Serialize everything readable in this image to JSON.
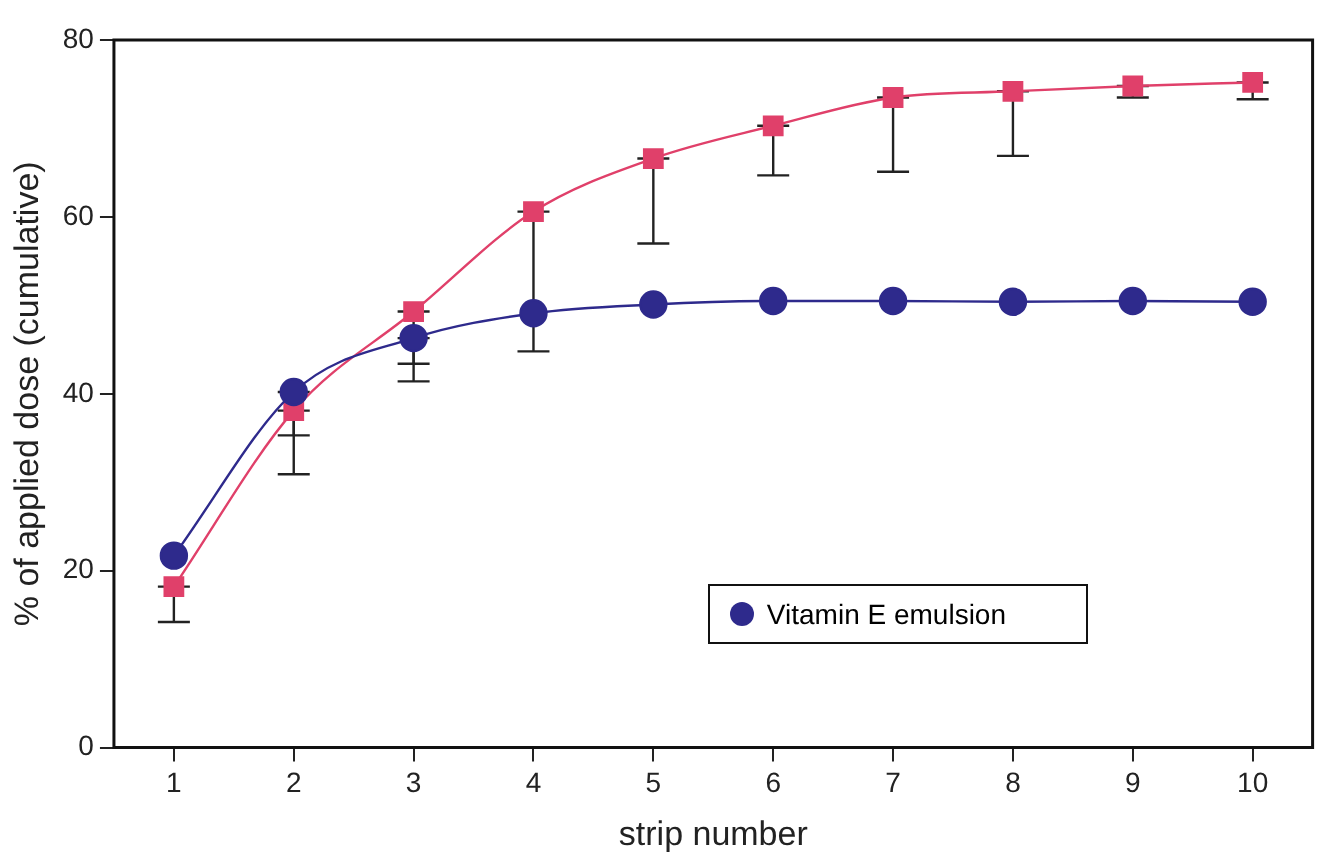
{
  "chart_data": {
    "type": "line",
    "xlabel": "strip number",
    "ylabel": "% of applied dose (cumulative)",
    "x": [
      1,
      2,
      3,
      4,
      5,
      6,
      7,
      8,
      9,
      10
    ],
    "xlim": [
      0.5,
      10.5
    ],
    "xticks": [
      1,
      2,
      3,
      4,
      5,
      6,
      7,
      8,
      9,
      10
    ],
    "ylim": [
      0,
      80
    ],
    "yticks": [
      0,
      20,
      40,
      60,
      80
    ],
    "grid": false,
    "legend": "bottom right",
    "series": [
      {
        "name": "Vitamin E emulsion",
        "color": "#2e2a8c",
        "marker": "circle",
        "values": [
          21.7,
          40.2,
          46.3,
          49.1,
          50.1,
          50.5,
          50.5,
          50.4,
          50.5,
          50.4
        ],
        "errors": [
          null,
          [
            35.3,
            40.2
          ],
          [
            43.4,
            46.3
          ],
          null,
          null,
          null,
          null,
          null,
          null,
          null
        ]
      },
      {
        "color": "#e0406a",
        "marker": "square",
        "values": [
          18.2,
          38.1,
          49.3,
          60.6,
          66.6,
          70.3,
          73.5,
          74.2,
          74.8,
          75.2
        ],
        "errors": [
          [
            14.2,
            18.2
          ],
          [
            30.9,
            38.1
          ],
          [
            41.4,
            49.3
          ],
          [
            44.8,
            60.6
          ],
          [
            57.0,
            66.6
          ],
          [
            64.7,
            70.3
          ],
          [
            65.1,
            73.5
          ],
          [
            66.9,
            74.2
          ],
          [
            73.5,
            74.8
          ],
          [
            73.3,
            75.2
          ]
        ]
      }
    ]
  }
}
